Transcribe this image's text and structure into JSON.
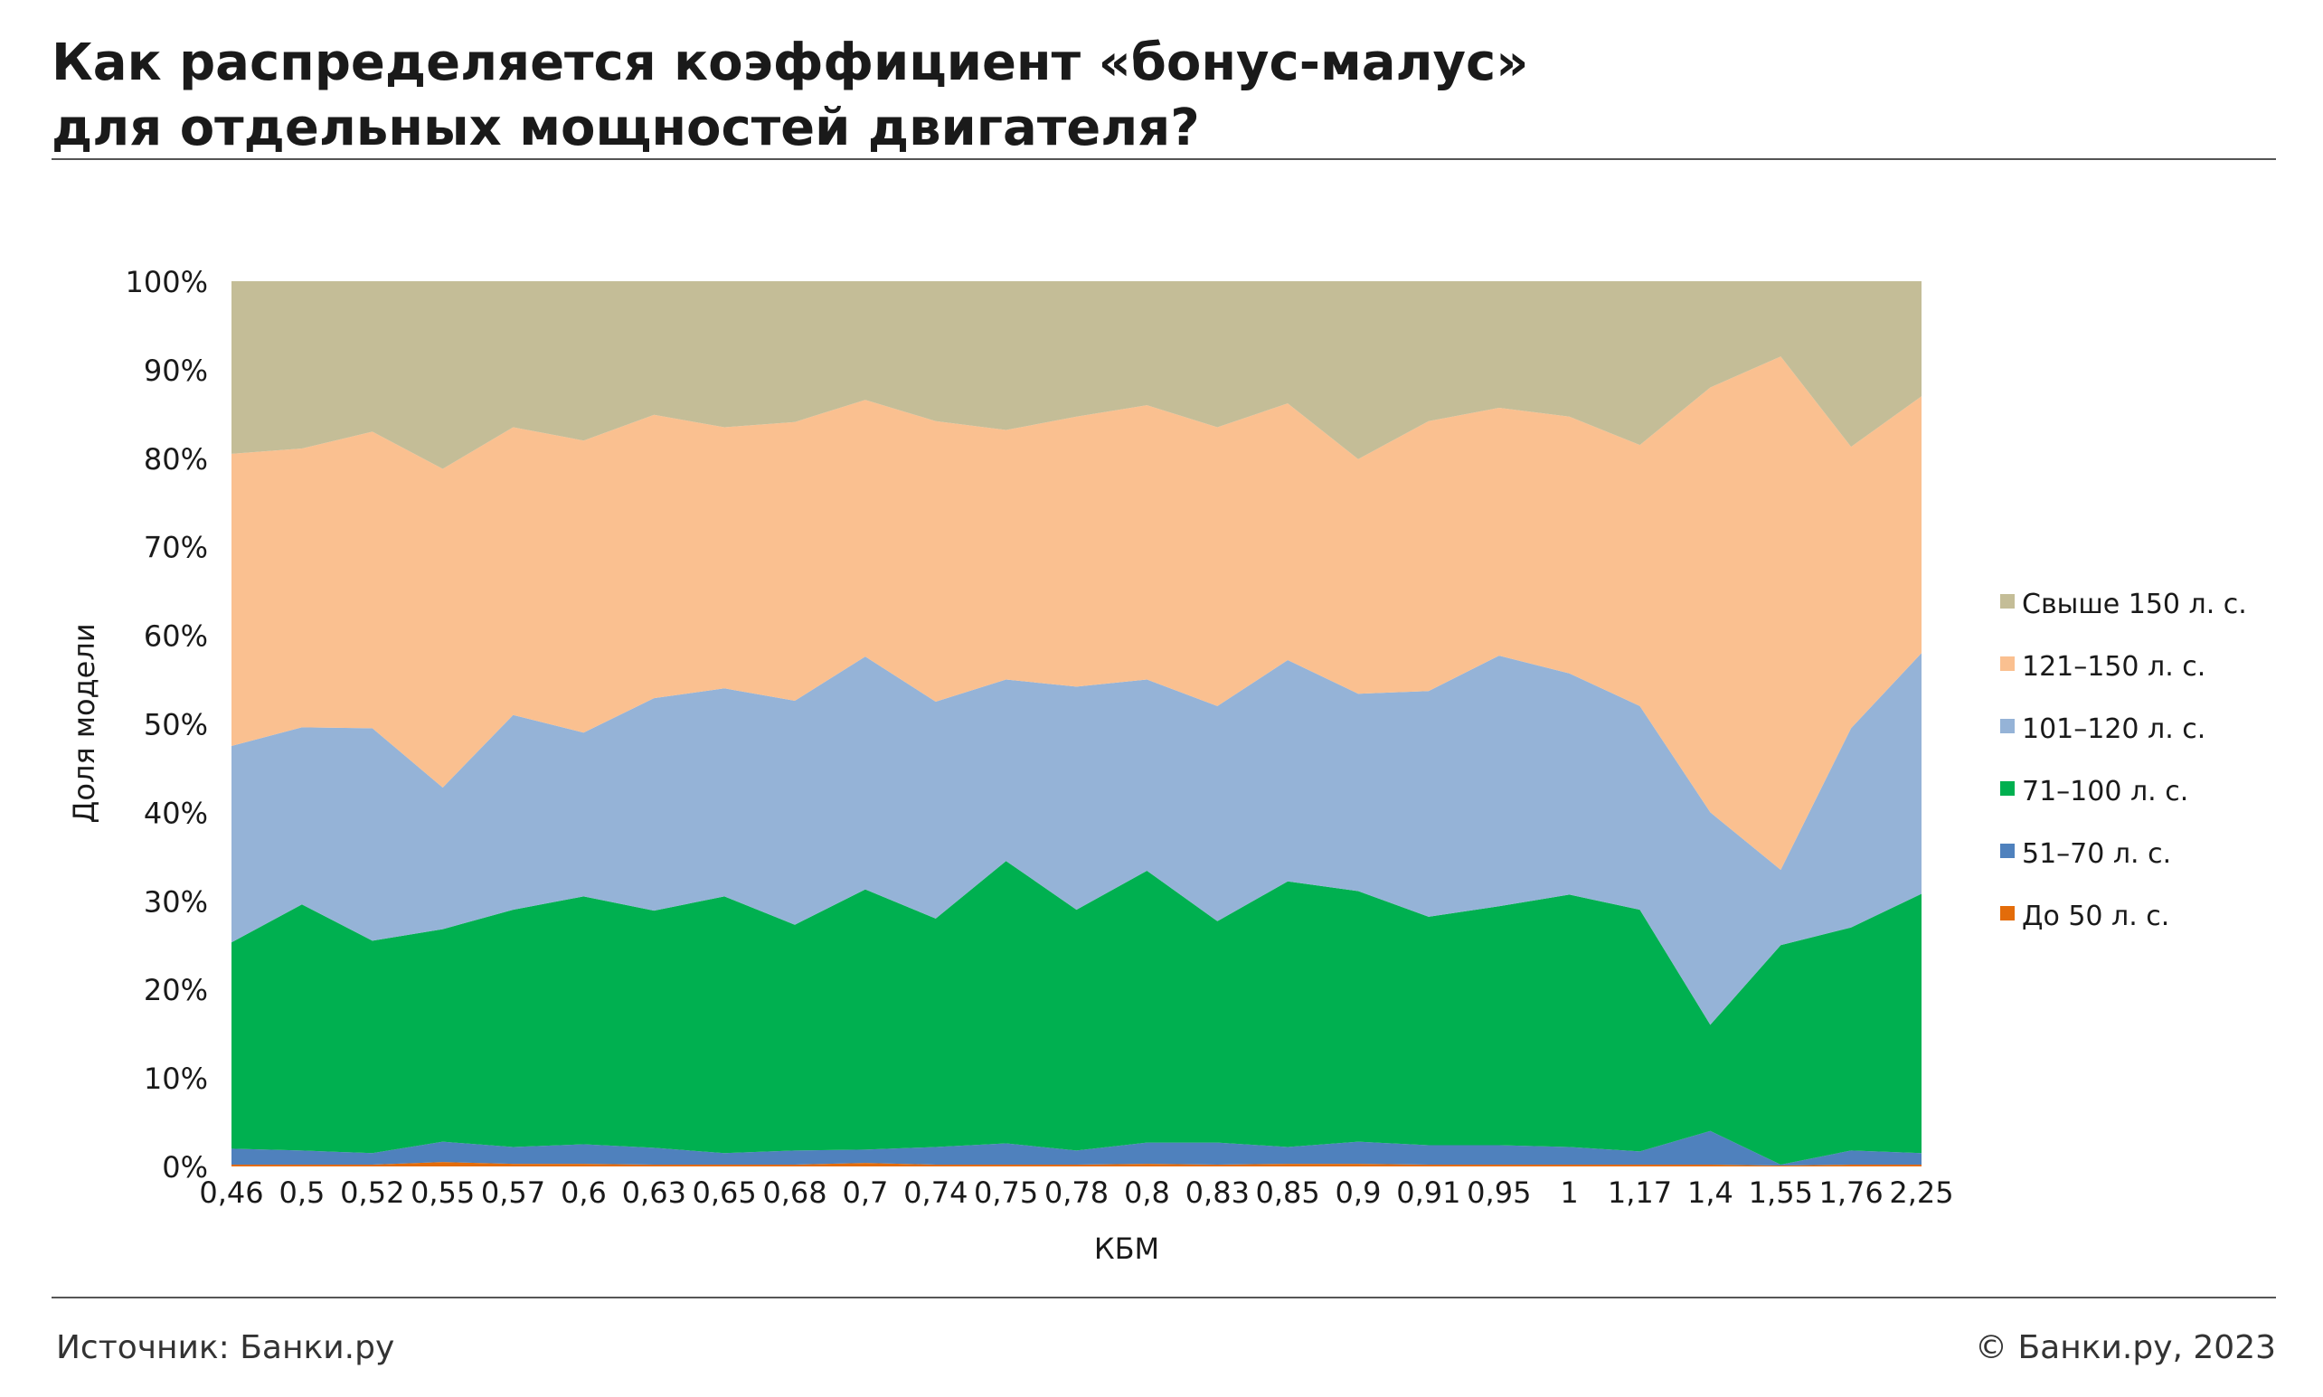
{
  "header": {
    "title_line1": "Как распределяется коэффициент «бонус-малус»",
    "title_line2": "для отдельных мощностей двигателя?"
  },
  "footer": {
    "source": "Источник: Банки.ру",
    "copyright": "© Банки.ру, 2023"
  },
  "chart_data": {
    "type": "area",
    "stacked": true,
    "xlabel": "КБМ",
    "ylabel": "Доля модели",
    "ylim": [
      0,
      100
    ],
    "y_ticks": [
      "0%",
      "10%",
      "20%",
      "30%",
      "40%",
      "50%",
      "60%",
      "70%",
      "80%",
      "90%",
      "100%"
    ],
    "categories": [
      "0,46",
      "0,5",
      "0,52",
      "0,55",
      "0,57",
      "0,6",
      "0,63",
      "0,65",
      "0,68",
      "0,7",
      "0,74",
      "0,75",
      "0,78",
      "0,8",
      "0,83",
      "0,85",
      "0,9",
      "0,91",
      "0,95",
      "1",
      "1,17",
      "1,4",
      "1,55",
      "1,76",
      "2,25"
    ],
    "legend_position": "right",
    "series": [
      {
        "name": "До 50 л. с.",
        "color": "#e36c0a",
        "values": [
          0.2,
          0.2,
          0.2,
          0.5,
          0.3,
          0.3,
          0.2,
          0.2,
          0.2,
          0.4,
          0.2,
          0.2,
          0.2,
          0.3,
          0.2,
          0.3,
          0.3,
          0.2,
          0.2,
          0.2,
          0.2,
          0.2,
          0.1,
          0.2,
          0.2
        ]
      },
      {
        "name": "51–70 л. с.",
        "color": "#4f81bd",
        "values": [
          1.8,
          1.6,
          1.3,
          2.3,
          1.9,
          2.2,
          1.9,
          1.3,
          1.6,
          1.5,
          2.0,
          2.4,
          1.6,
          2.4,
          2.5,
          1.9,
          2.5,
          2.2,
          2.2,
          2.0,
          1.5,
          3.8,
          0.1,
          1.6,
          1.3
        ]
      },
      {
        "name": "71–100 л. с.",
        "color": "#00b050",
        "values": [
          23.3,
          27.8,
          24.0,
          24.0,
          26.8,
          28.0,
          26.8,
          29.0,
          25.5,
          29.4,
          25.8,
          31.9,
          27.2,
          30.7,
          25.0,
          30.0,
          28.3,
          25.8,
          27.0,
          28.5,
          27.3,
          12.0,
          24.8,
          25.2,
          29.3
        ]
      },
      {
        "name": "101–120 л. с.",
        "color": "#95b3d7",
        "values": [
          22.2,
          20.0,
          24.0,
          16.0,
          22.0,
          18.5,
          24.0,
          23.5,
          25.3,
          26.3,
          24.5,
          20.5,
          25.2,
          21.6,
          24.3,
          25.0,
          22.3,
          25.5,
          28.3,
          25.0,
          23.0,
          24.0,
          8.5,
          22.5,
          27.2
        ]
      },
      {
        "name": "121–150 л. с.",
        "color": "#fac090",
        "values": [
          33.0,
          31.5,
          33.5,
          36.0,
          32.5,
          33.0,
          32.0,
          29.5,
          31.5,
          29.0,
          31.7,
          28.2,
          30.5,
          31.0,
          31.5,
          29.0,
          26.5,
          30.5,
          28.0,
          29.0,
          29.5,
          48.0,
          58.0,
          31.8,
          29.0
        ]
      },
      {
        "name": "Свыше 150 л. с.",
        "color": "#c4bd97",
        "values": [
          19.5,
          18.9,
          17.0,
          21.2,
          16.5,
          18.0,
          15.1,
          16.5,
          15.9,
          13.4,
          15.8,
          16.8,
          15.3,
          14.0,
          16.5,
          13.8,
          20.1,
          15.8,
          14.3,
          15.3,
          18.5,
          12.0,
          8.5,
          18.7,
          13.0
        ]
      }
    ]
  }
}
